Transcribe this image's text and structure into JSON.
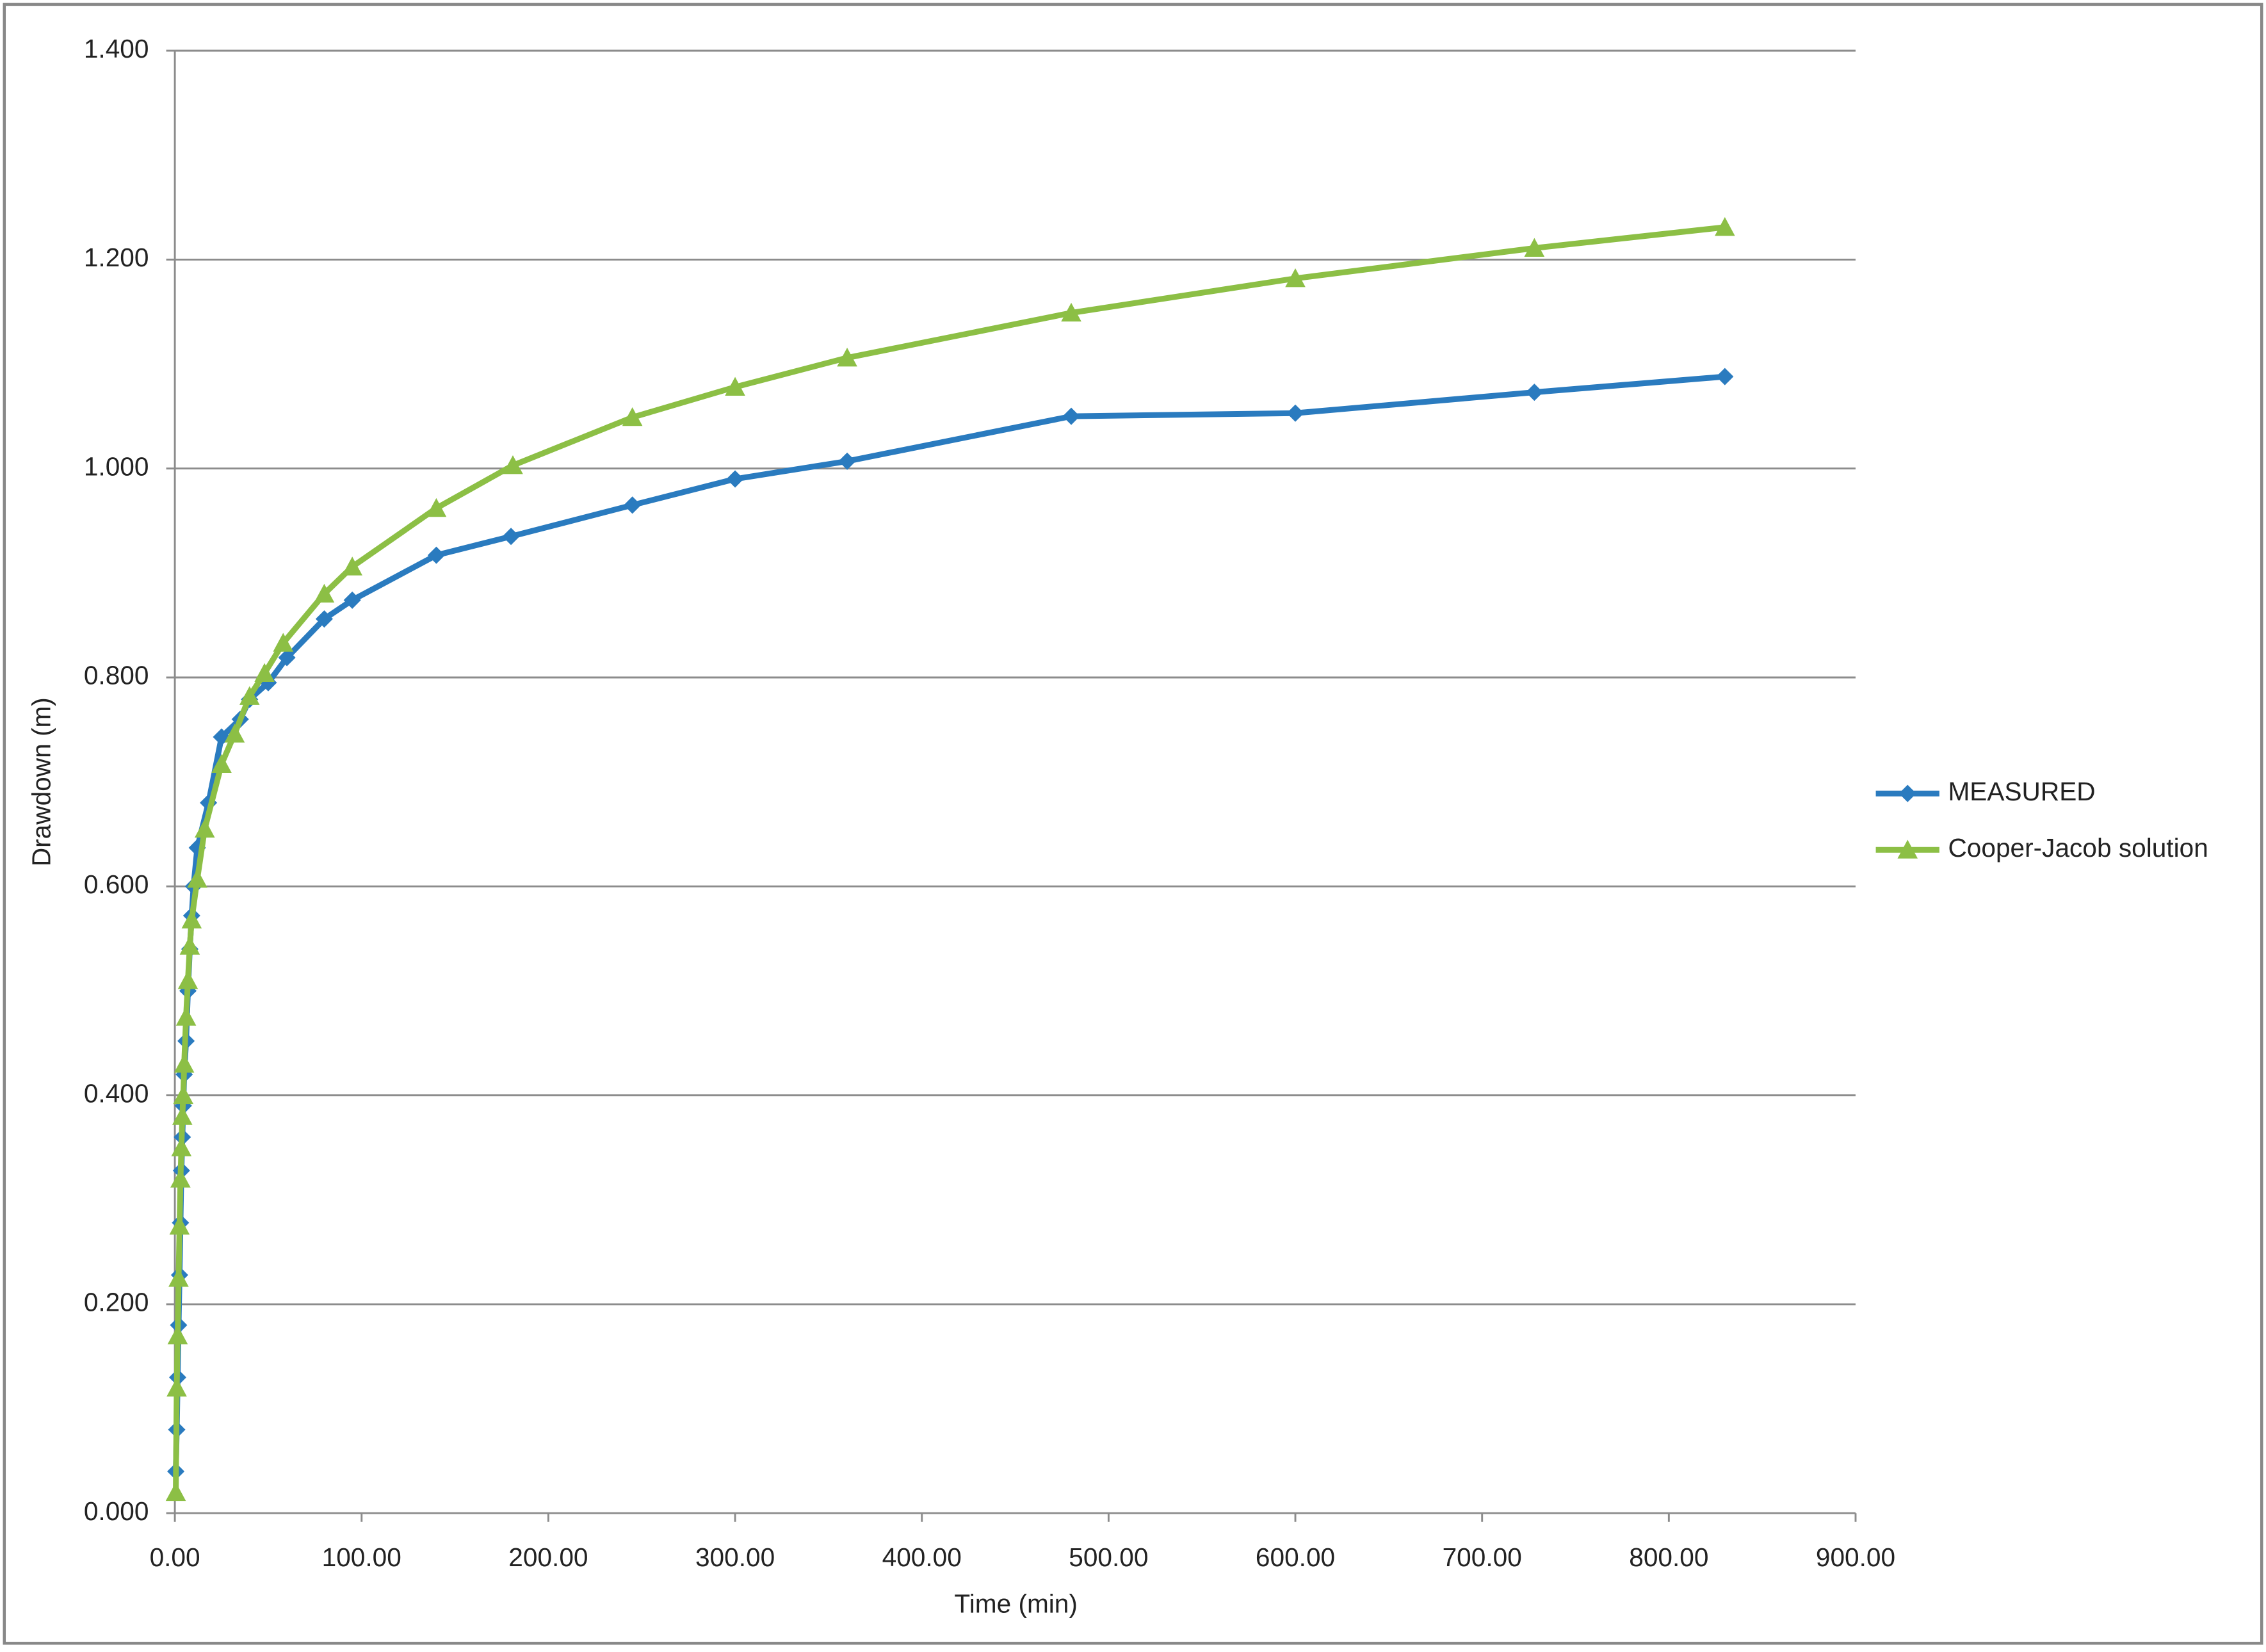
{
  "chart_data": {
    "type": "line",
    "x_label": "Time (min)",
    "y_label": "Drawdown (m)",
    "xlim": [
      0,
      900
    ],
    "ylim": [
      0,
      1.4
    ],
    "xticks": [
      {
        "value": 0,
        "label": "0.00"
      },
      {
        "value": 100,
        "label": "100.00"
      },
      {
        "value": 200,
        "label": "200.00"
      },
      {
        "value": 300,
        "label": "300.00"
      },
      {
        "value": 400,
        "label": "400.00"
      },
      {
        "value": 500,
        "label": "500.00"
      },
      {
        "value": 600,
        "label": "600.00"
      },
      {
        "value": 700,
        "label": "700.00"
      },
      {
        "value": 800,
        "label": "800.00"
      },
      {
        "value": 900,
        "label": "900.00"
      }
    ],
    "yticks": [
      {
        "value": 0,
        "label": "0.000"
      },
      {
        "value": 0.2,
        "label": "0.200"
      },
      {
        "value": 0.4,
        "label": "0.400"
      },
      {
        "value": 0.6,
        "label": "0.600"
      },
      {
        "value": 0.8,
        "label": "0.800"
      },
      {
        "value": 1.0,
        "label": "1.000"
      },
      {
        "value": 1.2,
        "label": "1.200"
      },
      {
        "value": 1.4,
        "label": "1.400"
      }
    ],
    "grid": true,
    "legend": "right",
    "series": [
      {
        "name": "MEASURED",
        "color": "#2a7bbf",
        "marker": "diamond",
        "x": [
          0.5,
          1,
          1.5,
          2,
          2.5,
          3,
          3.5,
          4,
          4.5,
          5,
          6,
          7,
          8,
          9,
          10,
          12,
          18,
          25,
          35,
          40,
          50,
          60,
          80,
          95,
          140,
          180,
          245,
          300,
          360,
          480,
          600,
          728,
          830
        ],
        "values": [
          0.04,
          0.08,
          0.13,
          0.18,
          0.228,
          0.278,
          0.328,
          0.36,
          0.39,
          0.42,
          0.452,
          0.5,
          0.54,
          0.572,
          0.6,
          0.637,
          0.68,
          0.743,
          0.76,
          0.779,
          0.795,
          0.819,
          0.856,
          0.874,
          0.917,
          0.935,
          0.965,
          0.99,
          1.007,
          1.05,
          1.053,
          1.073,
          1.088
        ]
      },
      {
        "name": "Cooper-Jacob solution",
        "color": "#8cbf45",
        "marker": "triangle",
        "x": [
          0.5,
          1,
          1.5,
          2,
          2.5,
          3,
          3.5,
          4,
          4.5,
          5,
          6,
          7,
          8,
          9,
          12,
          16,
          25,
          32,
          40,
          48,
          58,
          80,
          95,
          140,
          181,
          245,
          300,
          360,
          480,
          600,
          728,
          830
        ],
        "values": [
          0.02,
          0.12,
          0.17,
          0.225,
          0.275,
          0.32,
          0.35,
          0.38,
          0.4,
          0.43,
          0.475,
          0.51,
          0.543,
          0.568,
          0.607,
          0.655,
          0.717,
          0.746,
          0.782,
          0.804,
          0.833,
          0.88,
          0.906,
          0.962,
          1.003,
          1.049,
          1.078,
          1.106,
          1.149,
          1.182,
          1.211,
          1.231
        ]
      }
    ]
  }
}
